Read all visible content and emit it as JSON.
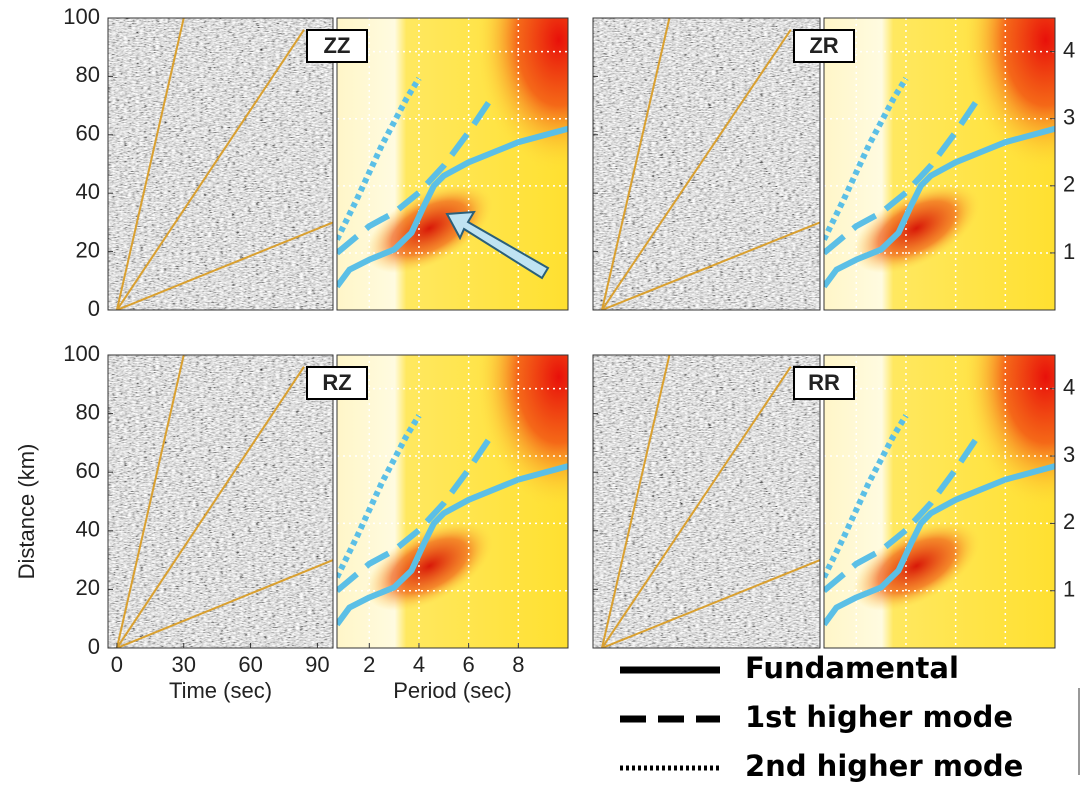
{
  "chart_data": [
    {
      "type": "seismogram",
      "panels": [
        "ZZ",
        "ZR",
        "RZ",
        "RR"
      ],
      "x_label": "Time (sec)",
      "y_label": "Distance (km)",
      "xlim": [
        -4,
        97
      ],
      "xticks": [
        0,
        30,
        60,
        90
      ],
      "ylim": [
        0,
        100
      ],
      "yticks": [
        0,
        20,
        40,
        60,
        80,
        100
      ],
      "color": "#d9a030",
      "reference_lines": [
        {
          "x": [
            0,
            30
          ],
          "values": [
            0,
            100
          ]
        },
        {
          "x": [
            0,
            84
          ],
          "values": [
            0,
            96
          ]
        },
        {
          "x": [
            0,
            97
          ],
          "values": [
            0,
            30
          ]
        }
      ]
    },
    {
      "type": "line",
      "x_label": "Period (sec)",
      "xlim": [
        0.7,
        10
      ],
      "xticks": [
        2,
        4,
        6,
        8
      ],
      "y2lim": [
        0.15,
        4.5
      ],
      "y2ticks": [
        1,
        2,
        3,
        4
      ],
      "grid": true,
      "series": [
        {
          "name": "Fundamental",
          "color": "#5bbfe6",
          "dash": "solid",
          "axis": "y2",
          "x": [
            0.7,
            1.2,
            2,
            3,
            3.7,
            4.2,
            4.6,
            5,
            6,
            7,
            8,
            10
          ],
          "values": [
            0.5,
            0.75,
            0.9,
            1.05,
            1.3,
            1.7,
            2.0,
            2.15,
            2.35,
            2.5,
            2.65,
            2.85
          ]
        },
        {
          "name": "1st higher mode",
          "color": "#5bbfe6",
          "dash": "dashed",
          "axis": "y2",
          "x": [
            0.7,
            2,
            3,
            4,
            5,
            6,
            7
          ],
          "values": [
            1.0,
            1.4,
            1.6,
            1.9,
            2.3,
            2.8,
            3.35
          ]
        },
        {
          "name": "2nd higher mode",
          "color": "#5bbfe6",
          "dash": "dotted",
          "axis": "y2",
          "x": [
            0.7,
            1.5,
            2.5,
            3.5,
            4
          ],
          "values": [
            1.2,
            1.8,
            2.6,
            3.3,
            3.6
          ]
        }
      ]
    }
  ]
}
